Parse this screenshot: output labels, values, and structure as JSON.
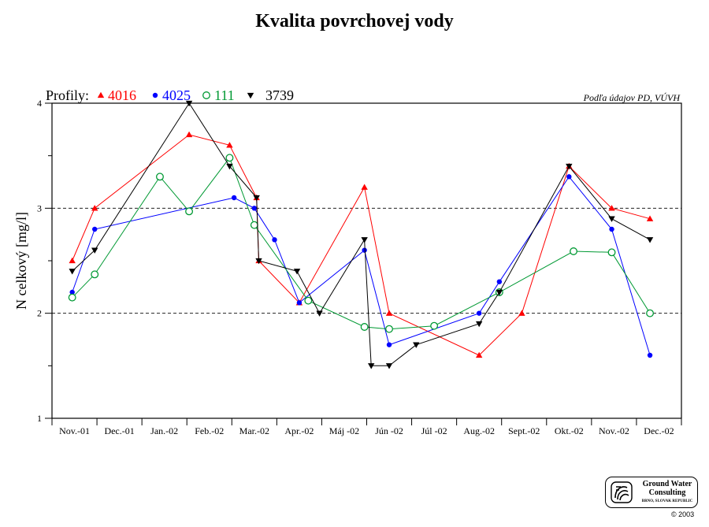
{
  "chart_data": {
    "type": "line",
    "title": "Kvalita povrchovej vody",
    "source_note": "Podľa údajov PD, VÚVH",
    "legend_prefix": "Profily:",
    "ylabel": "N celkový [mg/l]",
    "xlabel": "",
    "ylim": [
      1,
      4
    ],
    "yticks": [
      "1",
      "2",
      "3",
      "4"
    ],
    "grid_y": [
      2,
      3
    ],
    "legend_position": "top-left",
    "categories": [
      "Nov.-01",
      "Dec.-01",
      "Jan.-02",
      "Feb.-02",
      "Mar.-02",
      "Apr.-02",
      "Máj -02",
      "Jún -02",
      "Júl -02",
      "Aug.-02",
      "Sept.-02",
      "Okt.-02",
      "Nov.-02",
      "Dec.-02"
    ],
    "series": [
      {
        "name": "4016",
        "color": "#ff0000",
        "marker": "triangle-up",
        "points": [
          [
            0.45,
            2.5
          ],
          [
            0.95,
            3.0
          ],
          [
            3.05,
            3.7
          ],
          [
            3.95,
            3.6
          ],
          [
            4.55,
            3.1
          ],
          [
            4.6,
            2.5
          ],
          [
            5.5,
            2.1
          ],
          [
            6.95,
            3.2
          ],
          [
            7.5,
            2.0
          ],
          [
            9.5,
            1.6
          ],
          [
            10.45,
            2.0
          ],
          [
            11.5,
            3.4
          ],
          [
            12.45,
            3.0
          ],
          [
            13.3,
            2.9
          ]
        ]
      },
      {
        "name": "4025",
        "color": "#0000ff",
        "marker": "circle",
        "points": [
          [
            0.45,
            2.2
          ],
          [
            0.95,
            2.8
          ],
          [
            4.05,
            3.1
          ],
          [
            4.5,
            3.0
          ],
          [
            4.95,
            2.7
          ],
          [
            5.5,
            2.1
          ],
          [
            6.95,
            2.6
          ],
          [
            7.5,
            1.7
          ],
          [
            9.5,
            2.0
          ],
          [
            9.95,
            2.3
          ],
          [
            11.5,
            3.3
          ],
          [
            12.45,
            2.8
          ],
          [
            13.3,
            1.6
          ]
        ]
      },
      {
        "name": "111",
        "color": "#009933",
        "marker": "open-circle",
        "points": [
          [
            0.45,
            2.15
          ],
          [
            0.95,
            2.37
          ],
          [
            2.4,
            3.3
          ],
          [
            3.05,
            2.97
          ],
          [
            3.95,
            3.48
          ],
          [
            4.5,
            2.84
          ],
          [
            5.7,
            2.12
          ],
          [
            6.95,
            1.87
          ],
          [
            7.5,
            1.85
          ],
          [
            8.5,
            1.88
          ],
          [
            9.95,
            2.2
          ],
          [
            11.6,
            2.59
          ],
          [
            12.45,
            2.58
          ],
          [
            13.3,
            2.0
          ]
        ]
      },
      {
        "name": "3739",
        "color": "#000000",
        "marker": "triangle-down",
        "points": [
          [
            0.45,
            2.4
          ],
          [
            0.95,
            2.6
          ],
          [
            3.05,
            4.0
          ],
          [
            3.95,
            3.4
          ],
          [
            4.55,
            3.1
          ],
          [
            4.6,
            2.5
          ],
          [
            5.45,
            2.4
          ],
          [
            5.95,
            2.0
          ],
          [
            6.95,
            2.7
          ],
          [
            7.1,
            1.5
          ],
          [
            7.5,
            1.5
          ],
          [
            8.1,
            1.7
          ],
          [
            9.5,
            1.9
          ],
          [
            9.95,
            2.2
          ],
          [
            11.5,
            3.4
          ],
          [
            12.45,
            2.9
          ],
          [
            13.3,
            2.7
          ]
        ]
      }
    ]
  },
  "logo": {
    "line1": "Ground Water",
    "line2": "Consulting",
    "line3": "BRNO, SLOVAK REPUBLIC"
  },
  "copyright": "© 2003"
}
